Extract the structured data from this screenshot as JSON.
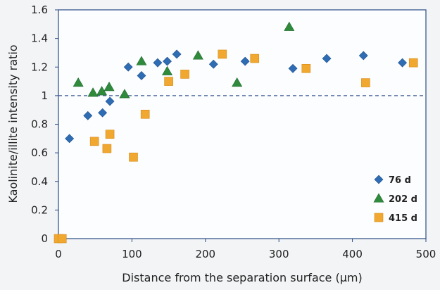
{
  "chart_data": {
    "type": "scatter",
    "xlabel": "Distance from the separation surface (µm)",
    "ylabel": "Kaolinite/illite intensity ratio",
    "xlim": [
      0,
      500
    ],
    "ylim": [
      0,
      1.6
    ],
    "xticks": [
      "0",
      "100",
      "200",
      "300",
      "400",
      "500"
    ],
    "yticks": [
      "0",
      "0.2",
      "0.4",
      "0.6",
      "0.8",
      "1",
      "1.2",
      "1.4",
      "1.6"
    ],
    "grid": false,
    "legend_position": "bottom-right",
    "reference_line": {
      "y": 1.0,
      "style": "dashed"
    },
    "series": [
      {
        "name": "76 d",
        "marker": "diamond",
        "color": "#2e6db4",
        "points": [
          [
            15,
            0.7
          ],
          [
            40,
            0.86
          ],
          [
            60,
            0.88
          ],
          [
            70,
            0.96
          ],
          [
            95,
            1.2
          ],
          [
            113,
            1.14
          ],
          [
            135,
            1.23
          ],
          [
            148,
            1.24
          ],
          [
            161,
            1.29
          ],
          [
            211,
            1.22
          ],
          [
            254,
            1.24
          ],
          [
            319,
            1.19
          ],
          [
            365,
            1.26
          ],
          [
            415,
            1.28
          ],
          [
            468,
            1.23
          ]
        ]
      },
      {
        "name": "202 d",
        "marker": "triangle",
        "color": "#2f8a3c",
        "points": [
          [
            27,
            1.09
          ],
          [
            47,
            1.02
          ],
          [
            59,
            1.03
          ],
          [
            69,
            1.06
          ],
          [
            90,
            1.01
          ],
          [
            113,
            1.24
          ],
          [
            148,
            1.17
          ],
          [
            190,
            1.28
          ],
          [
            243,
            1.09
          ],
          [
            314,
            1.48
          ]
        ]
      },
      {
        "name": "415 d",
        "marker": "square",
        "color": "#f0a830",
        "points": [
          [
            0,
            0.0
          ],
          [
            5,
            0.0
          ],
          [
            49,
            0.68
          ],
          [
            66,
            0.63
          ],
          [
            70,
            0.73
          ],
          [
            102,
            0.57
          ],
          [
            118,
            0.87
          ],
          [
            150,
            1.1
          ],
          [
            172,
            1.15
          ],
          [
            223,
            1.29
          ],
          [
            267,
            1.26
          ],
          [
            337,
            1.19
          ],
          [
            418,
            1.09
          ],
          [
            483,
            1.23
          ]
        ]
      }
    ]
  }
}
